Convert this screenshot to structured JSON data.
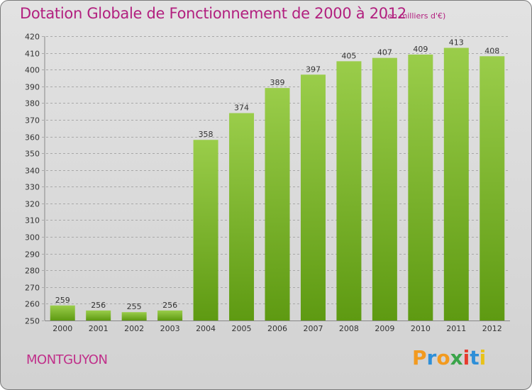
{
  "chart_data": {
    "type": "bar",
    "title": "Dotation Globale de Fonctionnement de 2000 à 2012",
    "unit_note": "(en milliers d'€)",
    "categories": [
      "2000",
      "2001",
      "2002",
      "2003",
      "2004",
      "2005",
      "2006",
      "2007",
      "2008",
      "2009",
      "2010",
      "2011",
      "2012"
    ],
    "values": [
      259,
      256,
      255,
      256,
      358,
      374,
      389,
      397,
      405,
      407,
      409,
      413,
      408
    ],
    "value_labels": [
      "259",
      "256",
      "255",
      "256",
      "358",
      "374",
      "389",
      "397",
      "405",
      "407",
      "409",
      "413",
      "408"
    ],
    "ylim": [
      250,
      420
    ],
    "yticks": [
      250,
      260,
      270,
      280,
      290,
      300,
      310,
      320,
      330,
      340,
      350,
      360,
      370,
      380,
      390,
      400,
      410,
      420
    ],
    "ytick_labels": [
      "250",
      "260",
      "270",
      "280",
      "290",
      "300",
      "310",
      "320",
      "330",
      "340",
      "350",
      "360",
      "370",
      "380",
      "390",
      "400",
      "410",
      "420"
    ],
    "xlabel": "",
    "ylabel": "",
    "grid": "horizontal-dashed",
    "bar_color_top": "#9acd4a",
    "bar_color_bottom": "#5e9a12"
  },
  "footer": {
    "commune": "MONTGUYON",
    "logo_letters": [
      "P",
      "r",
      "o",
      "x",
      "i",
      "t",
      "i"
    ],
    "logo_colors": [
      "#f29a1f",
      "#2e8fd8",
      "#f29a1f",
      "#3aa44a",
      "#e63b2e",
      "#2e8fd8",
      "#e8c21a"
    ]
  },
  "colors": {
    "title": "#b2207f",
    "background": "#d8d8d8"
  }
}
